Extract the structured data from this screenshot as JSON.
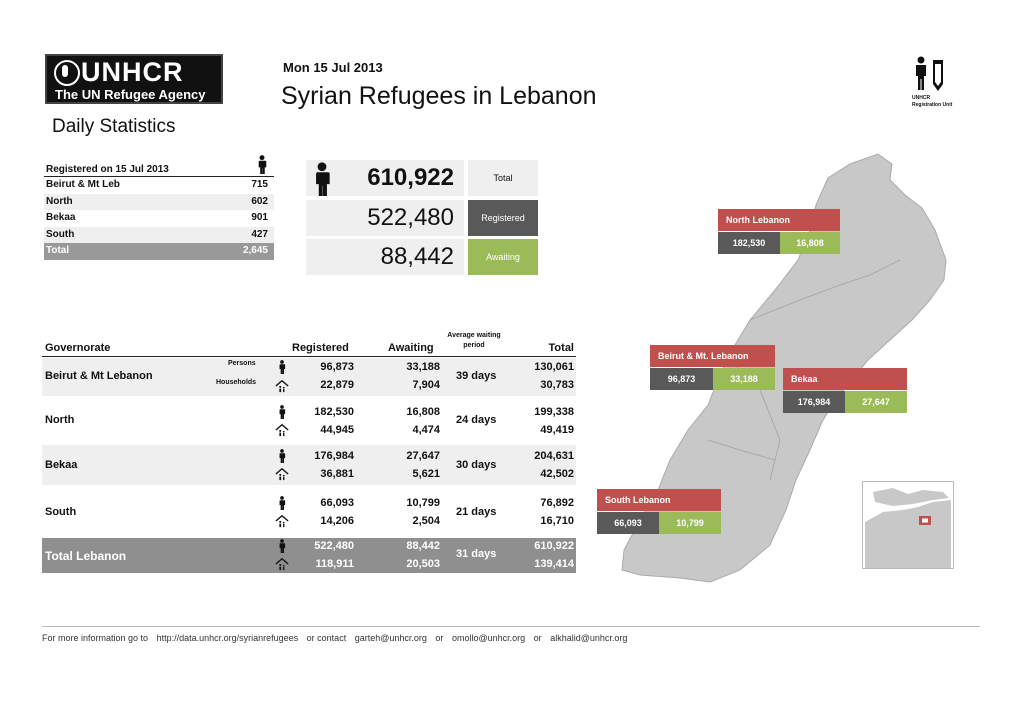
{
  "header": {
    "logo_line1": "UNHCR",
    "logo_line2": "The UN Refugee Agency",
    "subtitle": "Daily Statistics",
    "date": "Mon 15 Jul 2013",
    "title": "Syrian Refugees in Lebanon",
    "unit_line1": "UNHCR",
    "unit_line2": "Registration Unit"
  },
  "daily_table": {
    "header": "Registered on 15 Jul 2013",
    "rows": [
      {
        "label": "Beirut & Mt Leb",
        "value": "715"
      },
      {
        "label": "North",
        "value": "602"
      },
      {
        "label": "Bekaa",
        "value": "901"
      },
      {
        "label": "South",
        "value": "427"
      }
    ],
    "total": {
      "label": "Total",
      "value": "2,645"
    }
  },
  "summary": {
    "total_value": "610,922",
    "total_label": "Total",
    "registered_value": "522,480",
    "registered_label": "Registered",
    "awaiting_value": "88,442",
    "awaiting_label": "Awaiting"
  },
  "main_table": {
    "headers": {
      "governorate": "Governorate",
      "registered": "Registered",
      "awaiting": "Awaiting",
      "avg_wait": "Average waiting period",
      "total": "Total"
    },
    "persons_label": "Persons",
    "households_label": "Households",
    "rows": [
      {
        "name": "Beirut & Mt Lebanon",
        "reg_p": "96,873",
        "reg_h": "22,879",
        "aw_p": "33,188",
        "aw_h": "7,904",
        "days": "39 days",
        "tot_p": "130,061",
        "tot_h": "30,783"
      },
      {
        "name": "North",
        "reg_p": "182,530",
        "reg_h": "44,945",
        "aw_p": "16,808",
        "aw_h": "4,474",
        "days": "24 days",
        "tot_p": "199,338",
        "tot_h": "49,419"
      },
      {
        "name": "Bekaa",
        "reg_p": "176,984",
        "reg_h": "36,881",
        "aw_p": "27,647",
        "aw_h": "5,621",
        "days": "30 days",
        "tot_p": "204,631",
        "tot_h": "42,502"
      },
      {
        "name": "South",
        "reg_p": "66,093",
        "reg_h": "14,206",
        "aw_p": "10,799",
        "aw_h": "2,504",
        "days": "21 days",
        "tot_p": "76,892",
        "tot_h": "16,710"
      }
    ],
    "total": {
      "name": "Total Lebanon",
      "reg_p": "522,480",
      "reg_h": "118,911",
      "aw_p": "88,442",
      "aw_h": "20,503",
      "days": "31 days",
      "tot_p": "610,922",
      "tot_h": "139,414"
    }
  },
  "map": {
    "boxes": [
      {
        "name": "North Lebanon",
        "registered": "182,530",
        "awaiting": "16,808"
      },
      {
        "name": "Beirut & Mt. Lebanon",
        "registered": "96,873",
        "awaiting": "33,188"
      },
      {
        "name": "Bekaa",
        "registered": "176,984",
        "awaiting": "27,647"
      },
      {
        "name": "South Lebanon",
        "registered": "66,093",
        "awaiting": "10,799"
      }
    ]
  },
  "footer": {
    "text1": "For more information go to",
    "url": "http://data.unhcr.org/syrianrefugees",
    "text2": "or contact",
    "email1": "garteh@unhcr.org",
    "text3": "or",
    "email2": "omollo@unhcr.org",
    "text4": "or",
    "email3": "alkhalid@unhcr.org"
  },
  "colors": {
    "awaiting_red": "#c0504d",
    "registered_grey": "#595959",
    "awaiting_green": "#9bbb59",
    "map_grey": "#c8c8c8"
  }
}
